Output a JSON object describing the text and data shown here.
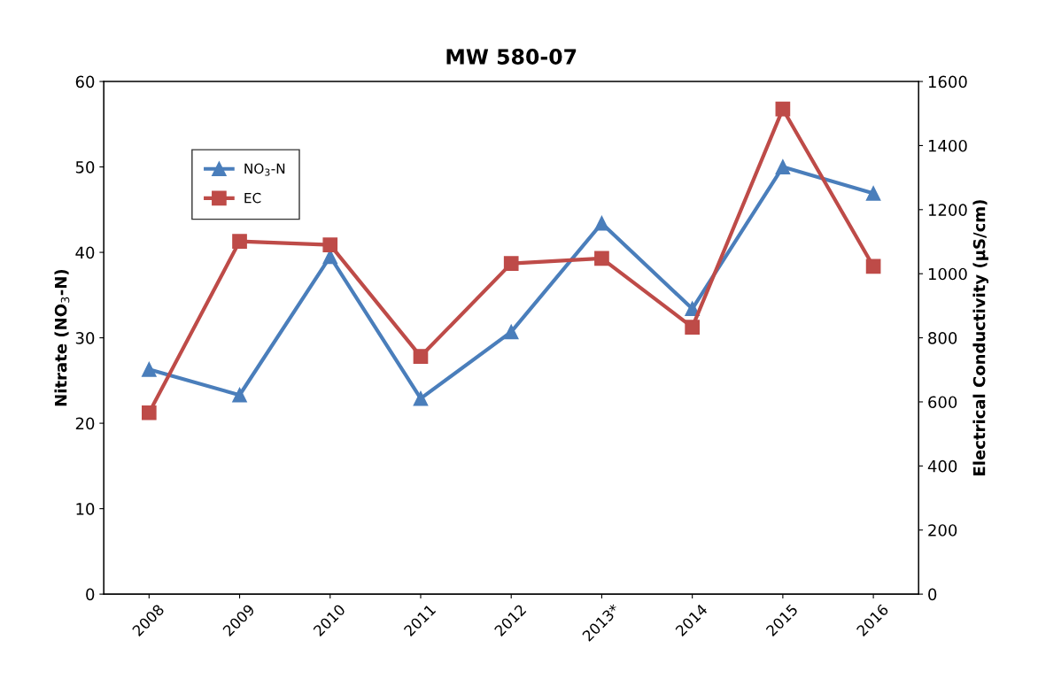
{
  "chart_data": {
    "type": "line",
    "title": "MW 580-07",
    "ylabel": "Nitrate (NO$_{3}$-N)",
    "y2label": "Electrical Conductivity (µS/cm)",
    "categories": [
      "2008",
      "2009",
      "2010",
      "2011",
      "2012",
      "2013*",
      "2014",
      "2015",
      "2016"
    ],
    "series": [
      {
        "name": "NO$_{3}$-N",
        "color": "#4a7ebb",
        "marker": "triangle",
        "values": [
          26.3,
          23.3,
          39.5,
          22.9,
          30.7,
          43.4,
          33.4,
          50.0,
          46.9
        ]
      },
      {
        "name": "EC",
        "color": "#be4b48",
        "marker": "square",
        "axis": "y2",
        "values": [
          566,
          1101,
          1090,
          742,
          1032,
          1048,
          833,
          1514,
          1023
        ]
      }
    ],
    "ylim": [
      0,
      60
    ],
    "yticks": [
      0,
      10,
      20,
      30,
      40,
      50,
      60
    ],
    "y2lim": [
      0,
      1600
    ],
    "y2ticks": [
      0,
      200,
      400,
      600,
      800,
      1000,
      1200,
      1400,
      1600
    ],
    "grid": false,
    "legend": "top left",
    "line_style": "solid"
  }
}
